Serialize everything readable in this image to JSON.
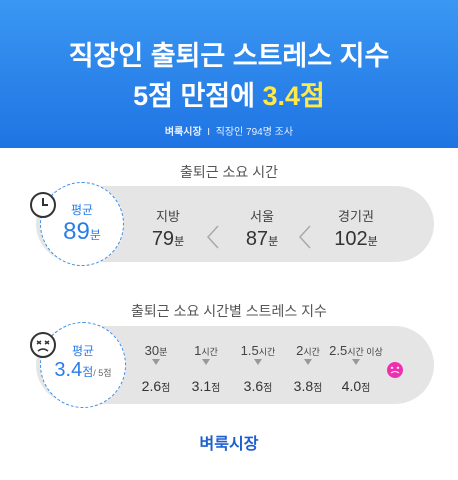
{
  "header": {
    "title_line1": "직장인 출퇴근 스트레스 지수",
    "title_line2": {
      "text": "5점 만점에",
      "highlight": "3.4점"
    },
    "source": {
      "brand": "벼룩시장",
      "separator": "I",
      "survey": "직장인 794명 조사"
    }
  },
  "commute_time": {
    "label": "출퇴근 소요 시간",
    "average": {
      "label": "평균",
      "value": "89",
      "unit": "분"
    },
    "regions": [
      {
        "name": "지방",
        "value": "79",
        "unit": "분"
      },
      {
        "name": "서울",
        "value": "87",
        "unit": "분"
      },
      {
        "name": "경기권",
        "value": "102",
        "unit": "분"
      }
    ]
  },
  "stress_index": {
    "label": "출퇴근 소요 시간별 스트레스 지수",
    "average": {
      "label": "평균",
      "value": "3.4",
      "unit": "점",
      "max": "/ 5점"
    },
    "steps": [
      {
        "time": "30",
        "time_unit": "분",
        "score": "2.6",
        "score_unit": "점"
      },
      {
        "time": "1",
        "time_unit": "시간",
        "score": "3.1",
        "score_unit": "점"
      },
      {
        "time": "1.5",
        "time_unit": "시간",
        "score": "3.6",
        "score_unit": "점"
      },
      {
        "time": "2",
        "time_unit": "시간",
        "score": "3.8",
        "score_unit": "점"
      },
      {
        "time": "2.5",
        "time_unit": "시간 이상",
        "score": "4.0",
        "score_unit": "점"
      }
    ]
  },
  "footer": {
    "brand": "벼룩시장"
  }
}
